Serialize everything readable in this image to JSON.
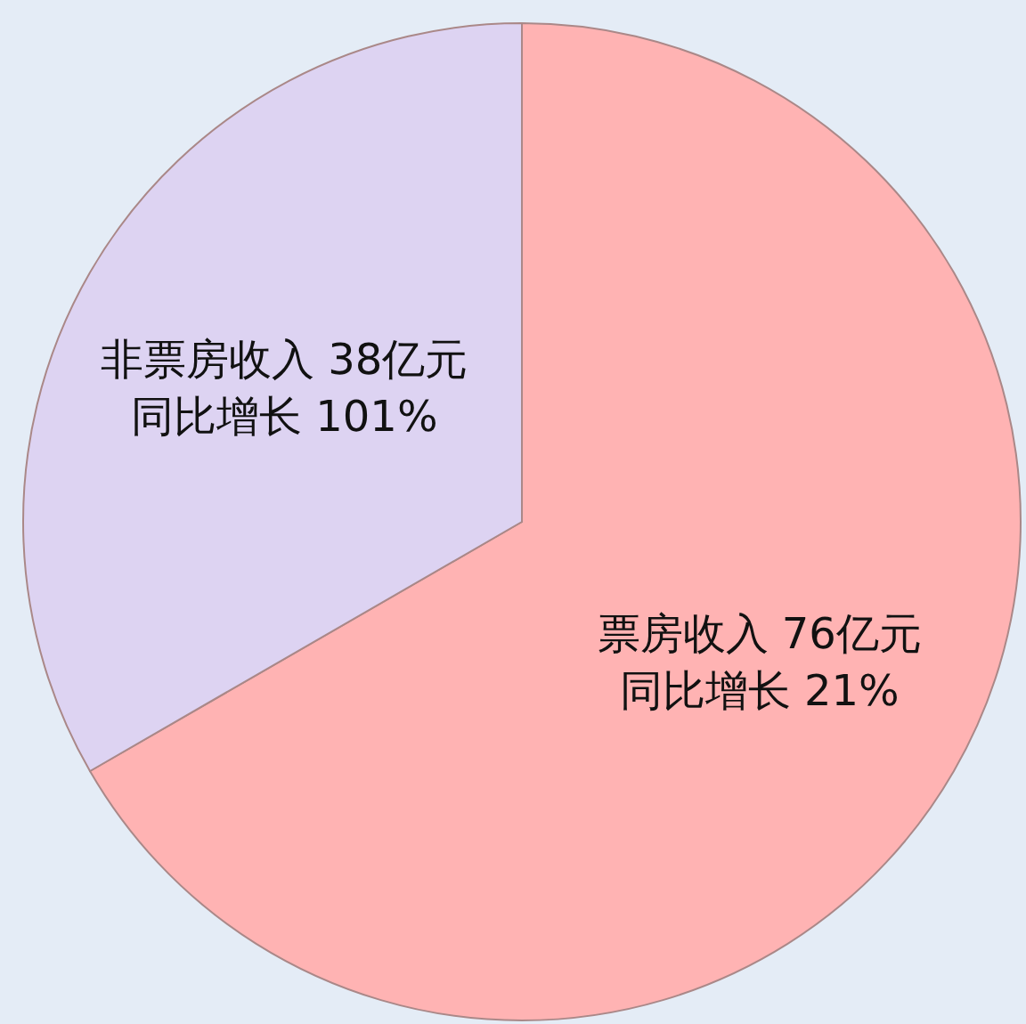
{
  "chart_data": {
    "type": "pie",
    "categories": [
      "票房收入",
      "非票房收入"
    ],
    "values": [
      76,
      38
    ],
    "value_labels": [
      "76亿元",
      "38亿元"
    ],
    "colors": [
      "#ffb3b3",
      "#ddd3f2"
    ],
    "annotations": [
      "同比增长 21%",
      "同比增长 101%"
    ]
  }
}
